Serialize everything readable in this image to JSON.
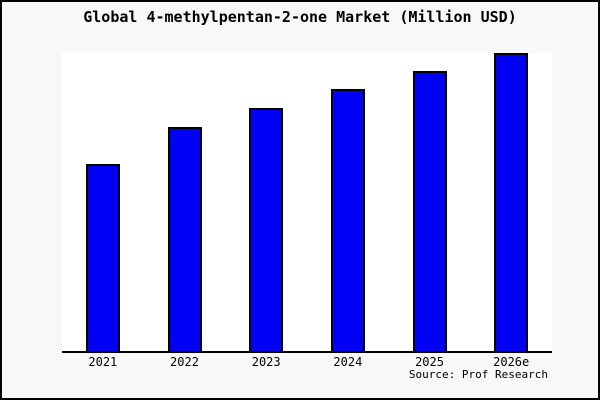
{
  "window": {
    "background_color": "#f8f8f8",
    "plot_background_color": "#ffffff",
    "border_color": "#000000"
  },
  "title": "Global 4-methylpentan-2-one Market (Million USD)",
  "source_note": "Source: Prof Research",
  "chart_data": {
    "type": "bar",
    "title": "Global 4-methylpentan-2-one Market (Million USD)",
    "categories": [
      "2021",
      "2022",
      "2023",
      "2024",
      "2025",
      "2026e"
    ],
    "values": [
      62.8,
      75.2,
      81.5,
      87.9,
      93.8,
      100
    ],
    "note": "No y-axis or value labels shown; values estimated relative to tallest bar (2026e = 100)",
    "xlabel": "",
    "ylabel": "",
    "ylim": [
      0,
      100
    ],
    "grid": false,
    "legend": null,
    "y_axis_visible": false,
    "tick_marks_visible": false,
    "bar_color": "#0000f5",
    "bar_edge_color": "#000000"
  }
}
